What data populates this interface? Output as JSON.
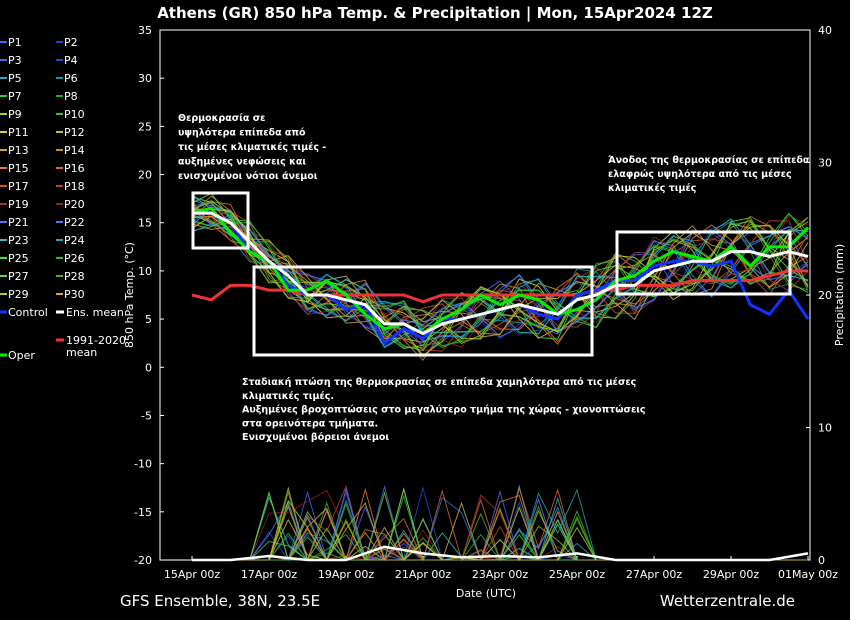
{
  "chart_data": {
    "type": "line",
    "title": "Athens  (GR)  850 hPa Temp. & Precipitation | Mon, 15Apr2024 12Z",
    "xlabel": "Date (UTC)",
    "ylabel": "850 hPa Temp. (°C)",
    "y2label": "Precipitation (mm)",
    "ylim": [
      -20,
      35
    ],
    "y2lim": [
      0,
      40
    ],
    "y_ticks": [
      "35",
      "30",
      "25",
      "20",
      "15",
      "10",
      "5",
      "0",
      "-5",
      "-10",
      "-15",
      "-20"
    ],
    "y2_ticks": [
      "40",
      "30",
      "20",
      "10",
      "0"
    ],
    "x_ticks": [
      "15Apr 00z",
      "17Apr 00z",
      "19Apr 00z",
      "21Apr 00z",
      "23Apr 00z",
      "25Apr 00z",
      "27Apr 00z",
      "29Apr 00z",
      "01May 00z"
    ],
    "x_days": [
      0,
      16
    ],
    "footer_left": "GFS Ensemble, 38N, 23.5E",
    "footer_right": "Wetterzentrale.de",
    "legend": [
      {
        "name": "P1",
        "color": "#4466ff"
      },
      {
        "name": "P2",
        "color": "#2244cc"
      },
      {
        "name": "P3",
        "color": "#3377ee"
      },
      {
        "name": "P4",
        "color": "#1155cc"
      },
      {
        "name": "P5",
        "color": "#22aacc"
      },
      {
        "name": "P6",
        "color": "#119999"
      },
      {
        "name": "P7",
        "color": "#33cc33"
      },
      {
        "name": "P8",
        "color": "#22aa22"
      },
      {
        "name": "P9",
        "color": "#99dd33"
      },
      {
        "name": "P10",
        "color": "#44bb22"
      },
      {
        "name": "P11",
        "color": "#ddcc33"
      },
      {
        "name": "P12",
        "color": "#ccbb55"
      },
      {
        "name": "P13",
        "color": "#dd9933"
      },
      {
        "name": "P14",
        "color": "#cc8822"
      },
      {
        "name": "P15",
        "color": "#ee7733"
      },
      {
        "name": "P16",
        "color": "#dd6633"
      },
      {
        "name": "P17",
        "color": "#cc5522"
      },
      {
        "name": "P18",
        "color": "#bb4422"
      },
      {
        "name": "P19",
        "color": "#aa3322"
      },
      {
        "name": "P20",
        "color": "#992211"
      },
      {
        "name": "P21",
        "color": "#5577ff"
      },
      {
        "name": "P22",
        "color": "#4488dd"
      },
      {
        "name": "P23",
        "color": "#33bbbb"
      },
      {
        "name": "P24",
        "color": "#22aaaa"
      },
      {
        "name": "P25",
        "color": "#44dd44"
      },
      {
        "name": "P26",
        "color": "#33bb33"
      },
      {
        "name": "P27",
        "color": "#77cc33"
      },
      {
        "name": "P28",
        "color": "#55aa22"
      },
      {
        "name": "P29",
        "color": "#bbcc33"
      },
      {
        "name": "P30",
        "color": "#ccaa44"
      }
    ],
    "legend_special": [
      {
        "name": "Control",
        "color": "#1133ff"
      },
      {
        "name": "Ens. mean",
        "color": "#ffffff"
      },
      {
        "name": "1991-2020 mean",
        "line1": "1991-2020",
        "line2": "mean",
        "color": "#ee3333"
      },
      {
        "name": "Oper",
        "color": "#00ee00"
      }
    ],
    "ens_mean": {
      "name": "Ens. mean",
      "x_day": [
        0,
        0.5,
        1,
        1.5,
        2,
        2.5,
        3,
        3.5,
        4,
        4.5,
        5,
        5.5,
        6,
        6.5,
        7,
        7.5,
        8,
        8.5,
        9,
        9.5,
        10,
        10.5,
        11,
        11.5,
        12,
        12.5,
        13,
        13.5,
        14,
        14.5,
        15,
        15.5,
        16
      ],
      "temp": [
        16,
        16,
        15,
        13,
        11,
        9.5,
        7.5,
        7.5,
        7,
        6.5,
        4.5,
        4.5,
        3.5,
        4.5,
        5,
        5.5,
        6,
        6.5,
        6,
        5.5,
        7,
        7.5,
        8.5,
        8.5,
        10,
        10.5,
        11,
        11,
        12,
        12,
        11.5,
        12,
        11.5
      ]
    },
    "climate_mean": {
      "name": "1991-2020 mean",
      "x_day": [
        0,
        0.5,
        1,
        1.5,
        2,
        2.5,
        3,
        3.5,
        4,
        4.5,
        5,
        5.5,
        6,
        6.5,
        7,
        7.5,
        8,
        8.5,
        9,
        9.5,
        10,
        10.5,
        11,
        11.5,
        12,
        12.5,
        13,
        13.5,
        14,
        14.5,
        15,
        15.5,
        16
      ],
      "temp": [
        7.5,
        7,
        8.5,
        8.5,
        8,
        8,
        7.5,
        7.5,
        7.5,
        7.5,
        7.5,
        7.5,
        6.8,
        7.5,
        7.5,
        7.5,
        7.5,
        7.5,
        7.5,
        7.5,
        7.5,
        8,
        8,
        8.5,
        8.5,
        8.5,
        9,
        9,
        9,
        9,
        9.5,
        10,
        10
      ]
    },
    "control": {
      "name": "Control",
      "x_day": [
        0,
        0.5,
        1,
        1.5,
        2,
        2.5,
        3,
        3.5,
        4,
        4.5,
        5,
        5.5,
        6,
        6.5,
        7,
        7.5,
        8,
        8.5,
        9,
        9.5,
        10,
        10.5,
        11,
        11.5,
        12,
        12.5,
        13,
        13.5,
        14,
        14.5,
        15,
        15.5,
        16
      ],
      "temp": [
        16,
        16,
        15,
        12,
        11,
        8.5,
        7.5,
        7.5,
        6,
        6.5,
        2.5,
        4,
        3,
        5,
        5,
        5.5,
        6,
        6.5,
        5.5,
        5,
        7.5,
        8,
        9,
        9,
        10.5,
        11,
        11,
        10.5,
        11,
        6.5,
        5.5,
        8,
        5
      ]
    },
    "oper": {
      "name": "Oper",
      "x_day": [
        0,
        0.5,
        1,
        1.5,
        2,
        2.5,
        3,
        3.5,
        4,
        4.5,
        5,
        5.5,
        6,
        6.5,
        7,
        7.5,
        8,
        8.5,
        9,
        9.5,
        10,
        10.5,
        11,
        11.5,
        12,
        12.5,
        13,
        13.5,
        14,
        14.5,
        15,
        15.5,
        16
      ],
      "temp": [
        16,
        16.5,
        14,
        12,
        11,
        8,
        8,
        9,
        7.5,
        5.5,
        4,
        4.5,
        3.5,
        5,
        6,
        7.5,
        6.5,
        7.5,
        7,
        5.5,
        6,
        7,
        9,
        9.5,
        11,
        12,
        11.5,
        11,
        12.5,
        10.5,
        12.5,
        12.5,
        14.5
      ]
    },
    "precip_mean": {
      "name": "Ens. mean",
      "x_day": [
        0,
        1,
        2,
        3,
        4,
        5,
        6,
        7,
        8,
        9,
        10,
        11,
        12,
        13,
        14,
        15,
        16
      ],
      "mm": [
        0,
        0,
        0.3,
        0,
        0,
        1,
        0.5,
        0.2,
        0.3,
        0.2,
        0.5,
        0,
        0,
        0,
        0,
        0,
        0.5
      ]
    }
  },
  "annotations": {
    "a1": [
      "Θερμοκρασία σε",
      "υψηλότερα επίπεδα από",
      "τις μέσες κλιματικές τιμές -",
      "αυξημένες νεφώσεις και",
      "ενισχυμένοι νότιοι άνεμοι"
    ],
    "a2": [
      "Άνοδος της θερμοκρασίας σε επίπεδα",
      "ελαφρώς υψηλότερα από τις μέσες",
      "κλιματικές τιμές"
    ],
    "a3": [
      "Σταδιακή πτώση της θερμοκρασίας σε επίπεδα χαμηλότερα από τις μέσες",
      "κλιματικές τιμές.",
      "Αυξημένες βροχοπτώσεις στο μεγαλύτερο τμήμα της χώρας - χιονοπτώσεις",
      "στα ορεινότερα τμήματα.",
      "Ενισχυμένοι βόρειοι άνεμοι"
    ]
  }
}
